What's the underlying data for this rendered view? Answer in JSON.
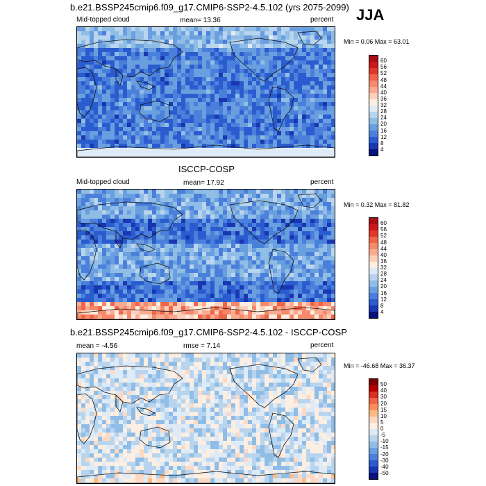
{
  "season": "JJA",
  "panels": [
    {
      "title": "b.e21.BSSP245cmip6.f09_g17.CMIP6-SSP2-4.5.102 (yrs 2075-2099)",
      "left_label": "Mid-topped cloud",
      "center_label": "mean=  13.36",
      "right_label": "percent",
      "minmax": "Min =  0.06 Max =  63.01",
      "colorbar": {
        "ticks": [
          "60",
          "56",
          "52",
          "48",
          "44",
          "40",
          "36",
          "32",
          "28",
          "24",
          "20",
          "16",
          "12",
          "8",
          "4"
        ],
        "colors": [
          "#a50f15",
          "#cb181d",
          "#e0392b",
          "#ef6548",
          "#f6896b",
          "#fbab92",
          "#fdd0bb",
          "#fdeee2",
          "#deebf7",
          "#b8d4ee",
          "#90bde6",
          "#6a9fdf",
          "#4a7fdb",
          "#2b5ccf",
          "#1837b0",
          "#08127a"
        ]
      },
      "map_style": "model"
    },
    {
      "title": "ISCCP-COSP",
      "left_label": "Mid-topped cloud",
      "center_label": "mean=  17.92",
      "right_label": "percent",
      "minmax": "Min =  0.32 Max =  81.82",
      "colorbar": {
        "ticks": [
          "60",
          "56",
          "52",
          "48",
          "44",
          "40",
          "36",
          "32",
          "28",
          "24",
          "20",
          "16",
          "12",
          "8",
          "4"
        ],
        "colors": [
          "#a50f15",
          "#cb181d",
          "#e0392b",
          "#ef6548",
          "#f6896b",
          "#fbab92",
          "#fdd0bb",
          "#fdeee2",
          "#deebf7",
          "#b8d4ee",
          "#90bde6",
          "#6a9fdf",
          "#4a7fdb",
          "#2b5ccf",
          "#1837b0",
          "#08127a"
        ]
      },
      "map_style": "obs"
    },
    {
      "title": "b.e21.BSSP245cmip6.f09_g17.CMIP6-SSP2-4.5.102 - ISCCP-COSP",
      "left_label": "mean =  -4.56",
      "center_label": "rmse =  7.14",
      "right_label": "percent",
      "minmax": "Min = -46.68 Max =  36.37",
      "colorbar": {
        "ticks": [
          "50",
          "40",
          "30",
          "20",
          "15",
          "10",
          "5",
          "0",
          "-5",
          "-10",
          "-15",
          "-20",
          "-30",
          "-40",
          "-50"
        ],
        "colors": [
          "#7f0000",
          "#b30000",
          "#d7301f",
          "#ef6548",
          "#fc8d59",
          "#fdbb84",
          "#fdd9c4",
          "#fdeee2",
          "#deebf7",
          "#b8d4ee",
          "#90bde6",
          "#6a9fdf",
          "#4a7fdb",
          "#2b5ccf",
          "#1837b0",
          "#08127a"
        ]
      },
      "map_style": "diff"
    }
  ]
}
